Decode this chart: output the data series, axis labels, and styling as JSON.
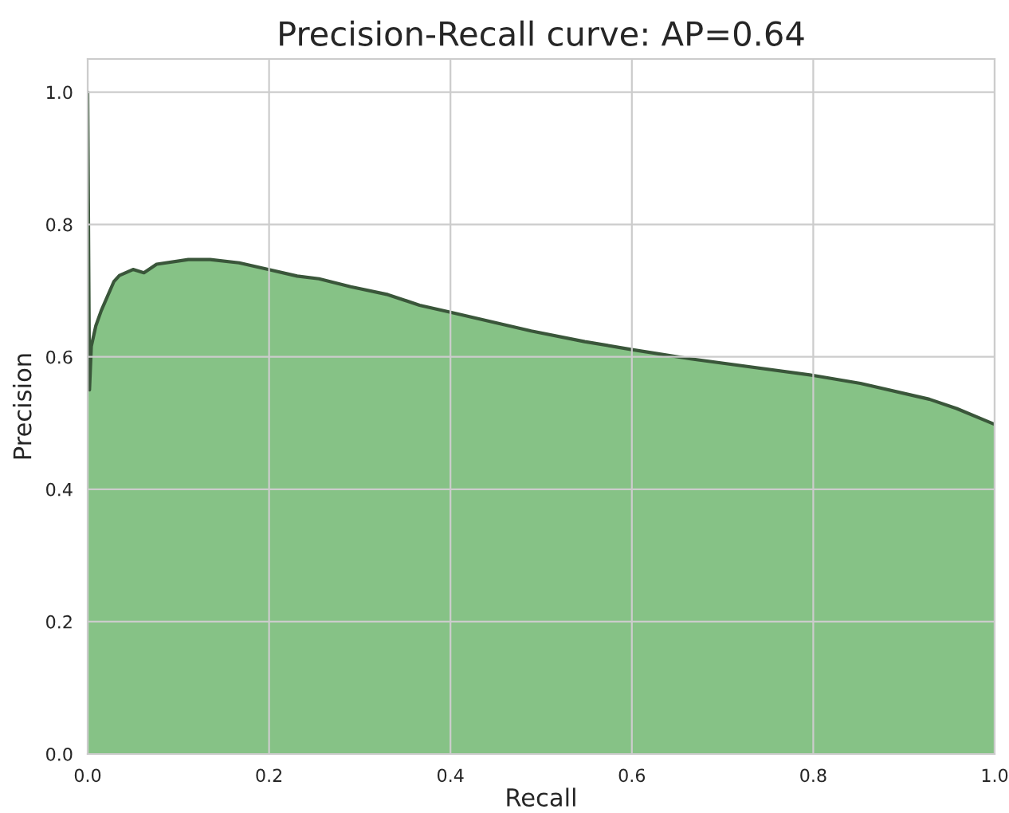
{
  "chart_data": {
    "type": "area",
    "title": "Precision-Recall curve: AP=0.64",
    "xlabel": "Recall",
    "ylabel": "Precision",
    "x": [
      0.0,
      0.002,
      0.004,
      0.009,
      0.015,
      0.029,
      0.035,
      0.05,
      0.062,
      0.076,
      0.111,
      0.135,
      0.167,
      0.199,
      0.231,
      0.255,
      0.29,
      0.331,
      0.366,
      0.401,
      0.489,
      0.548,
      0.6,
      0.665,
      0.8,
      0.852,
      0.928,
      0.958,
      1.0
    ],
    "series": [
      {
        "color": "#80bf80",
        "values": [
          1.0,
          0.55,
          0.616,
          0.647,
          0.67,
          0.714,
          0.723,
          0.732,
          0.727,
          0.74,
          0.747,
          0.747,
          0.742,
          0.732,
          0.722,
          0.718,
          0.706,
          0.694,
          0.678,
          0.667,
          0.639,
          0.623,
          0.611,
          0.597,
          0.572,
          0.56,
          0.536,
          0.522,
          0.498
        ]
      }
    ],
    "xlim": [
      0.0,
      1.0
    ],
    "ylim": [
      0.0,
      1.05
    ],
    "xticks": [
      {
        "value": 0,
        "label": "0.0"
      },
      0.2,
      0.4,
      0.6,
      0.8,
      {
        "value": 1,
        "label": "1.0"
      }
    ],
    "yticks": [
      {
        "value": 0,
        "label": "0.0"
      },
      0.2,
      0.4,
      0.6,
      0.8,
      {
        "value": 1,
        "label": "1.0"
      }
    ],
    "grid": true
  }
}
